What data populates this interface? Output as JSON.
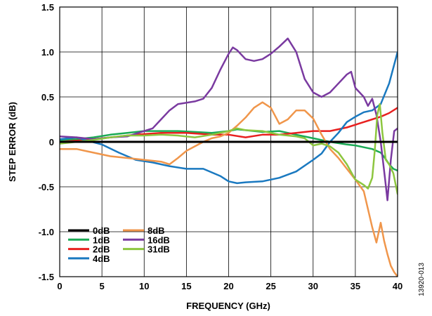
{
  "chart_data": {
    "type": "line",
    "title": "",
    "xlabel": "FREQUENCY (GHz)",
    "ylabel": "STEP ERROR (dB)",
    "xlim": [
      0,
      40
    ],
    "ylim": [
      -1.5,
      1.5
    ],
    "x_ticks": [
      "0",
      "5",
      "10",
      "15",
      "20",
      "25",
      "30",
      "35",
      "40"
    ],
    "y_ticks": [
      "1.5",
      "1.0",
      "0.5",
      "0",
      "-0.5",
      "-1.0",
      "-1.5"
    ],
    "grid": true,
    "legend_position": "bottom-left",
    "figure_id": "13920-013",
    "series": [
      {
        "name": "0dB",
        "color": "#000000",
        "width": 3,
        "points": [
          [
            0,
            0
          ],
          [
            40,
            0
          ]
        ]
      },
      {
        "name": "1dB",
        "color": "#1aaa55",
        "width": 2.5,
        "points": [
          [
            0,
            0.02
          ],
          [
            2,
            0.03
          ],
          [
            4,
            0.05
          ],
          [
            6,
            0.08
          ],
          [
            8,
            0.1
          ],
          [
            10,
            0.12
          ],
          [
            12,
            0.12
          ],
          [
            14,
            0.12
          ],
          [
            16,
            0.11
          ],
          [
            18,
            0.1
          ],
          [
            20,
            0.12
          ],
          [
            21,
            0.14
          ],
          [
            22,
            0.13
          ],
          [
            24,
            0.11
          ],
          [
            26,
            0.12
          ],
          [
            28,
            0.08
          ],
          [
            30,
            0.04
          ],
          [
            32,
            0.0
          ],
          [
            34,
            -0.03
          ],
          [
            35,
            -0.04
          ],
          [
            36,
            -0.06
          ],
          [
            37,
            -0.08
          ],
          [
            38,
            -0.12
          ],
          [
            38.5,
            -0.18
          ],
          [
            39,
            -0.25
          ],
          [
            39.5,
            -0.3
          ],
          [
            40,
            -0.32
          ]
        ]
      },
      {
        "name": "2dB",
        "color": "#e8201f",
        "width": 2.5,
        "points": [
          [
            0,
            0.0
          ],
          [
            3,
            0.02
          ],
          [
            6,
            0.05
          ],
          [
            9,
            0.08
          ],
          [
            12,
            0.1
          ],
          [
            15,
            0.1
          ],
          [
            18,
            0.08
          ],
          [
            20,
            0.08
          ],
          [
            22,
            0.05
          ],
          [
            24,
            0.08
          ],
          [
            26,
            0.08
          ],
          [
            28,
            0.1
          ],
          [
            30,
            0.12
          ],
          [
            32,
            0.12
          ],
          [
            34,
            0.16
          ],
          [
            36,
            0.22
          ],
          [
            37,
            0.25
          ],
          [
            38,
            0.28
          ],
          [
            39,
            0.32
          ],
          [
            40,
            0.38
          ]
        ]
      },
      {
        "name": "4dB",
        "color": "#1a79c0",
        "width": 2.5,
        "points": [
          [
            0,
            0.03
          ],
          [
            2,
            0.05
          ],
          [
            3,
            0.02
          ],
          [
            5,
            -0.03
          ],
          [
            7,
            -0.12
          ],
          [
            9,
            -0.2
          ],
          [
            11,
            -0.23
          ],
          [
            13,
            -0.27
          ],
          [
            15,
            -0.3
          ],
          [
            17,
            -0.3
          ],
          [
            19,
            -0.38
          ],
          [
            20,
            -0.44
          ],
          [
            21,
            -0.46
          ],
          [
            22,
            -0.45
          ],
          [
            24,
            -0.44
          ],
          [
            26,
            -0.4
          ],
          [
            28,
            -0.33
          ],
          [
            30,
            -0.2
          ],
          [
            31,
            -0.13
          ],
          [
            32,
            0.0
          ],
          [
            33,
            0.1
          ],
          [
            34,
            0.22
          ],
          [
            35,
            0.28
          ],
          [
            36,
            0.33
          ],
          [
            37,
            0.35
          ],
          [
            38,
            0.42
          ],
          [
            39,
            0.65
          ],
          [
            40,
            1.0
          ]
        ]
      },
      {
        "name": "8dB",
        "color": "#f0964b",
        "width": 2.5,
        "points": [
          [
            0,
            -0.08
          ],
          [
            2,
            -0.08
          ],
          [
            4,
            -0.12
          ],
          [
            6,
            -0.16
          ],
          [
            8,
            -0.18
          ],
          [
            10,
            -0.2
          ],
          [
            12,
            -0.22
          ],
          [
            13,
            -0.25
          ],
          [
            14,
            -0.18
          ],
          [
            15,
            -0.1
          ],
          [
            16,
            -0.05
          ],
          [
            17,
            0.0
          ],
          [
            18,
            0.04
          ],
          [
            19,
            0.06
          ],
          [
            20,
            0.1
          ],
          [
            21,
            0.18
          ],
          [
            22,
            0.27
          ],
          [
            23,
            0.38
          ],
          [
            24,
            0.44
          ],
          [
            25,
            0.38
          ],
          [
            26,
            0.2
          ],
          [
            27,
            0.25
          ],
          [
            28,
            0.35
          ],
          [
            29,
            0.35
          ],
          [
            30,
            0.26
          ],
          [
            31,
            0.08
          ],
          [
            32,
            -0.08
          ],
          [
            33,
            -0.18
          ],
          [
            34,
            -0.3
          ],
          [
            35,
            -0.42
          ],
          [
            36,
            -0.55
          ],
          [
            36.5,
            -0.75
          ],
          [
            37,
            -0.95
          ],
          [
            37.5,
            -1.12
          ],
          [
            38,
            -0.9
          ],
          [
            38.4,
            -1.1
          ],
          [
            38.8,
            -1.25
          ],
          [
            39.2,
            -1.38
          ],
          [
            39.6,
            -1.45
          ],
          [
            40,
            -1.5
          ]
        ]
      },
      {
        "name": "16dB",
        "color": "#7a3aa0",
        "width": 2.5,
        "points": [
          [
            0,
            0.06
          ],
          [
            2,
            0.05
          ],
          [
            4,
            0.03
          ],
          [
            6,
            0.05
          ],
          [
            8,
            0.06
          ],
          [
            10,
            0.12
          ],
          [
            11,
            0.15
          ],
          [
            12,
            0.25
          ],
          [
            13,
            0.35
          ],
          [
            14,
            0.42
          ],
          [
            16,
            0.45
          ],
          [
            17,
            0.48
          ],
          [
            18,
            0.6
          ],
          [
            19,
            0.8
          ],
          [
            20,
            0.98
          ],
          [
            20.5,
            1.05
          ],
          [
            21,
            1.02
          ],
          [
            22,
            0.92
          ],
          [
            23,
            0.9
          ],
          [
            24,
            0.92
          ],
          [
            25,
            0.98
          ],
          [
            26,
            1.06
          ],
          [
            27,
            1.15
          ],
          [
            28,
            1.0
          ],
          [
            29,
            0.7
          ],
          [
            30,
            0.55
          ],
          [
            31,
            0.5
          ],
          [
            32,
            0.55
          ],
          [
            33,
            0.65
          ],
          [
            34,
            0.75
          ],
          [
            34.5,
            0.78
          ],
          [
            35,
            0.6
          ],
          [
            36,
            0.5
          ],
          [
            36.5,
            0.4
          ],
          [
            37,
            0.48
          ],
          [
            37.5,
            0.3
          ],
          [
            38,
            0.0
          ],
          [
            38.5,
            -0.4
          ],
          [
            38.8,
            -0.65
          ],
          [
            39.2,
            -0.2
          ],
          [
            39.6,
            0.12
          ],
          [
            40,
            0.15
          ]
        ]
      },
      {
        "name": "31dB",
        "color": "#8dc63f",
        "width": 2.5,
        "points": [
          [
            0,
            -0.02
          ],
          [
            2,
            0.0
          ],
          [
            4,
            0.02
          ],
          [
            6,
            0.05
          ],
          [
            8,
            0.07
          ],
          [
            10,
            0.07
          ],
          [
            12,
            0.08
          ],
          [
            14,
            0.07
          ],
          [
            16,
            0.05
          ],
          [
            18,
            0.08
          ],
          [
            20,
            0.12
          ],
          [
            21,
            0.15
          ],
          [
            22,
            0.13
          ],
          [
            24,
            0.12
          ],
          [
            26,
            0.08
          ],
          [
            28,
            0.06
          ],
          [
            29,
            0.04
          ],
          [
            30,
            -0.04
          ],
          [
            31,
            -0.02
          ],
          [
            32,
            -0.05
          ],
          [
            33,
            -0.12
          ],
          [
            34,
            -0.25
          ],
          [
            35,
            -0.42
          ],
          [
            36,
            -0.48
          ],
          [
            36.5,
            -0.52
          ],
          [
            37,
            -0.4
          ],
          [
            37.3,
            -0.1
          ],
          [
            37.6,
            0.3
          ],
          [
            37.9,
            0.42
          ],
          [
            38.2,
            0.1
          ],
          [
            38.6,
            -0.2
          ],
          [
            39,
            -0.25
          ],
          [
            39.5,
            -0.35
          ],
          [
            40,
            -0.58
          ]
        ]
      }
    ]
  }
}
